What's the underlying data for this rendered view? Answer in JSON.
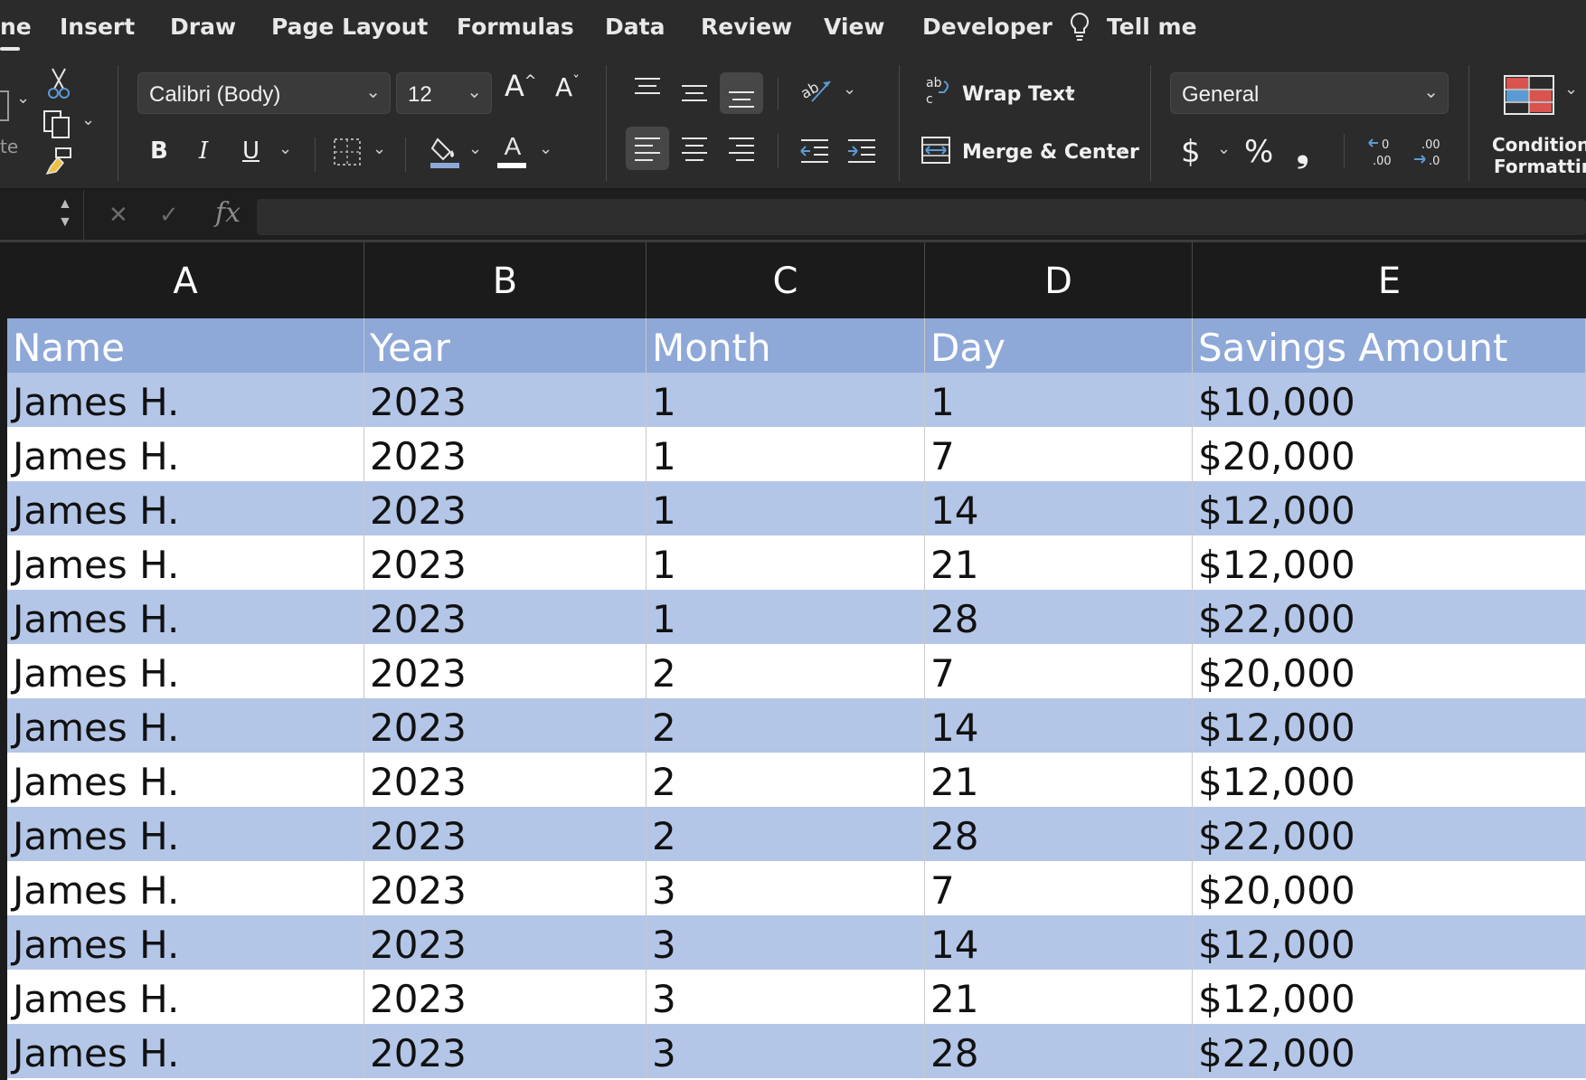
{
  "ribbon_tabs": [
    "ne",
    "Insert",
    "Draw",
    "Page Layout",
    "Formulas",
    "Data",
    "Review",
    "View",
    "Developer",
    "Tell me"
  ],
  "clipboard": {
    "paste_label_partial": "te"
  },
  "font": {
    "family": "Calibri (Body)",
    "size": "12",
    "increase_label": "A",
    "decrease_label": "A",
    "bold": "B",
    "italic": "I",
    "underline": "U",
    "font_color_letter": "A"
  },
  "alignment": {
    "wrap_text": "Wrap Text",
    "merge_center": "Merge & Center"
  },
  "number": {
    "format": "General",
    "currency": "$",
    "percent": "%",
    "comma": "❟",
    "inc_decimal": ".00",
    "dec_decimal": ".00"
  },
  "styles": {
    "conditional_formatting_line1": "Conditiona",
    "conditional_formatting_line2": "Formatting"
  },
  "formula_bar": {
    "fx": "fx",
    "cancel": "✕",
    "enter": "✓",
    "value": ""
  },
  "columns": [
    "A",
    "B",
    "C",
    "D",
    "E"
  ],
  "table": {
    "headers": [
      "Name",
      "Year",
      "Month",
      "Day",
      "Savings Amount"
    ],
    "rows": [
      [
        "James H.",
        "2023",
        "1",
        "1",
        "$10,000"
      ],
      [
        "James H.",
        "2023",
        "1",
        "7",
        "$20,000"
      ],
      [
        "James H.",
        "2023",
        "1",
        "14",
        "$12,000"
      ],
      [
        "James H.",
        "2023",
        "1",
        "21",
        "$12,000"
      ],
      [
        "James H.",
        "2023",
        "1",
        "28",
        "$22,000"
      ],
      [
        "James H.",
        "2023",
        "2",
        "7",
        "$20,000"
      ],
      [
        "James H.",
        "2023",
        "2",
        "14",
        "$12,000"
      ],
      [
        "James H.",
        "2023",
        "2",
        "21",
        "$12,000"
      ],
      [
        "James H.",
        "2023",
        "2",
        "28",
        "$22,000"
      ],
      [
        "James H.",
        "2023",
        "3",
        "7",
        "$20,000"
      ],
      [
        "James H.",
        "2023",
        "3",
        "14",
        "$12,000"
      ],
      [
        "James H.",
        "2023",
        "3",
        "21",
        "$12,000"
      ],
      [
        "James H.",
        "2023",
        "3",
        "28",
        "$22,000"
      ]
    ]
  },
  "colors": {
    "header_fill": "#8ea8d8",
    "band_fill": "#b4c6e7",
    "ribbon_bg": "#2b2b2b",
    "accent_blue": "#5b9bd5",
    "accent_red": "#d9534f"
  }
}
